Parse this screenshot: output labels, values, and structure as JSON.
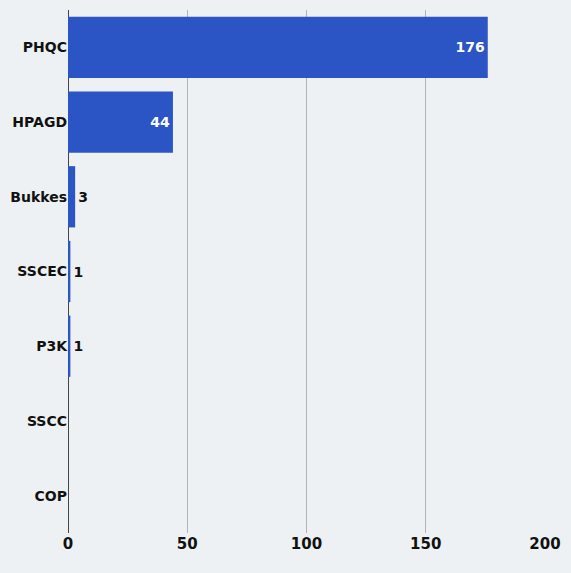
{
  "chart_data": {
    "type": "bar",
    "orientation": "horizontal",
    "categories": [
      "PHQC",
      "HPAGD",
      "Bukkes",
      "SSCEC",
      "P3K",
      "SSCC",
      "COP"
    ],
    "values": [
      176,
      44,
      3,
      1,
      1,
      null,
      null
    ],
    "color": "#2b55c4",
    "xlim": [
      0,
      200
    ],
    "xticks": [
      0,
      50,
      100,
      150,
      200
    ],
    "grid": true,
    "data_labels": true
  }
}
